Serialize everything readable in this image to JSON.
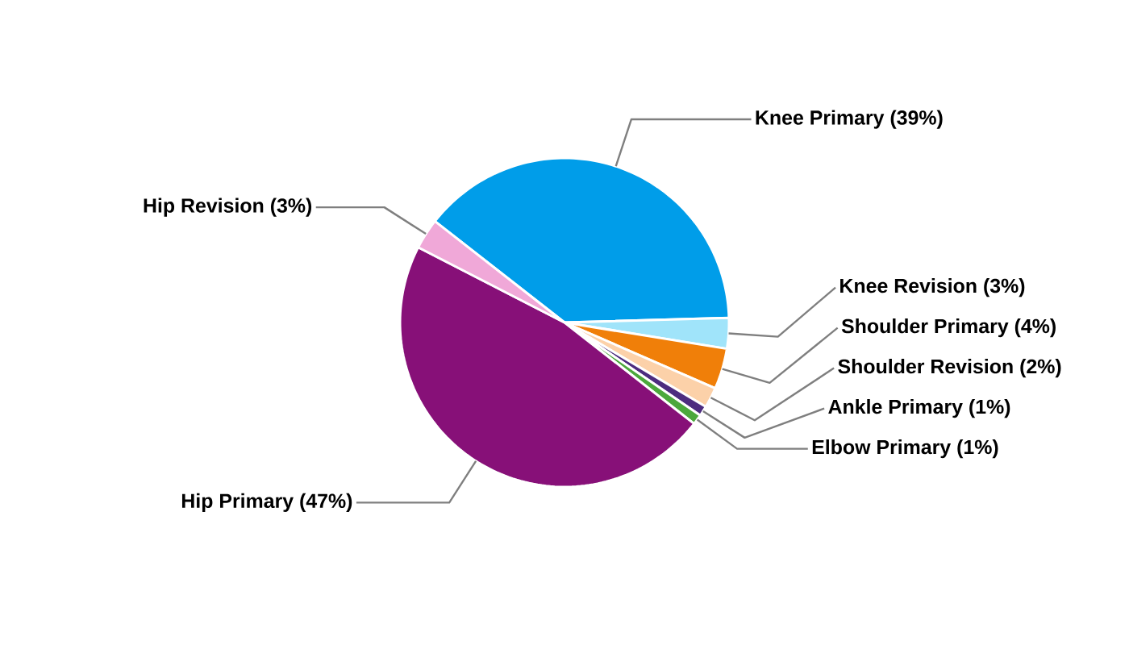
{
  "chart_data": {
    "type": "pie",
    "categories": [
      "Knee Primary (39%)",
      "Knee Revision (3%)",
      "Shoulder Primary (4%)",
      "Shoulder Revision (2%)",
      "Ankle Primary (1%)",
      "Elbow Primary (1%)",
      "Hip Primary (47%)",
      "Hip Revision (3%)"
    ],
    "values": [
      39,
      3,
      4,
      2,
      1,
      1,
      47,
      3
    ],
    "colors": [
      "#009de9",
      "#a0e4fa",
      "#f07f09",
      "#fcd1a9",
      "#4d2c7f",
      "#4ca83c",
      "#871078",
      "#f0a8d8"
    ]
  }
}
